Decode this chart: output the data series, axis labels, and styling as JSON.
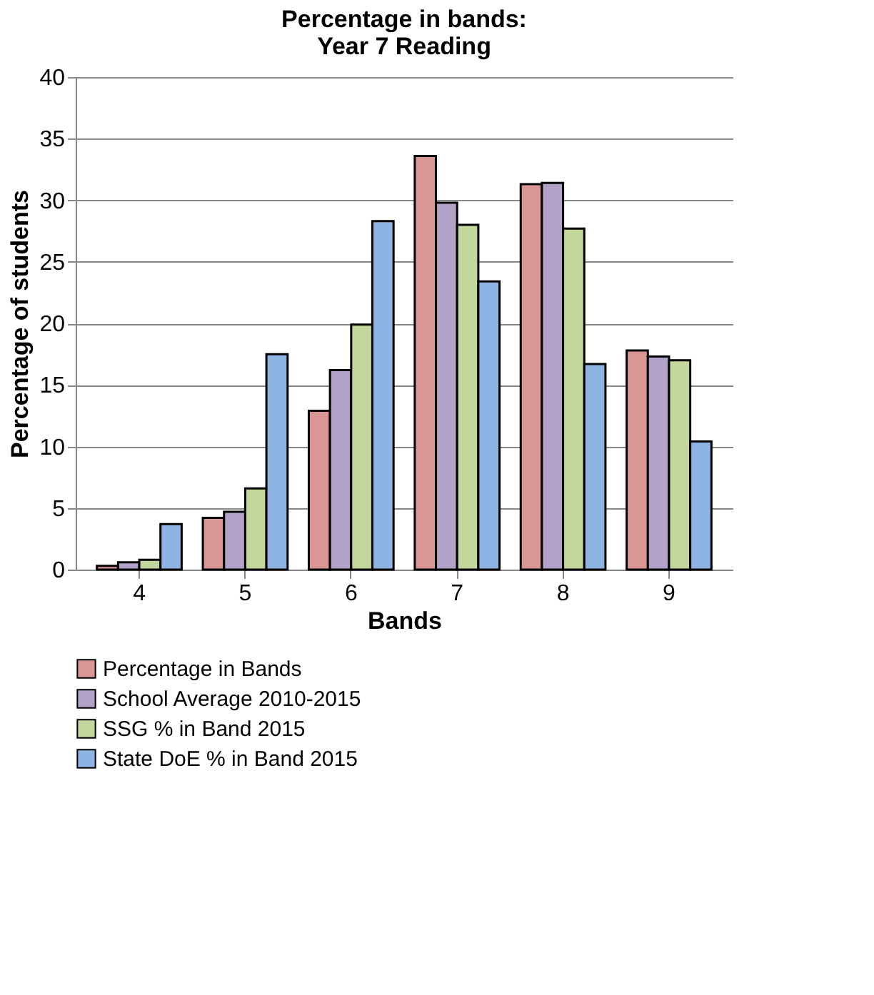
{
  "chart_data": {
    "type": "bar",
    "title": "Percentage in bands:\nYear 7 Reading",
    "xlabel": "Bands",
    "ylabel": "Percentage of students",
    "categories": [
      "4",
      "5",
      "6",
      "7",
      "8",
      "9"
    ],
    "series": [
      {
        "name": "Percentage in Bands",
        "color": "#d99694",
        "values": [
          0.3,
          4.2,
          12.9,
          33.6,
          31.3,
          17.8
        ]
      },
      {
        "name": "School Average 2010-2015",
        "color": "#b3a2c7",
        "values": [
          0.6,
          4.7,
          16.2,
          29.8,
          31.4,
          17.3
        ]
      },
      {
        "name": "SSG % in Band 2015",
        "color": "#c3d69b",
        "values": [
          0.8,
          6.6,
          19.9,
          28.0,
          27.7,
          17.0
        ]
      },
      {
        "name": "State DoE % in Band 2015",
        "color": "#8eb4e3",
        "values": [
          3.7,
          17.5,
          28.3,
          23.4,
          16.7,
          10.4
        ]
      }
    ],
    "ylim": [
      0,
      40
    ],
    "yticks": [
      0,
      5,
      10,
      15,
      20,
      25,
      30,
      35,
      40
    ],
    "grid": "y",
    "legend": "bottom"
  }
}
